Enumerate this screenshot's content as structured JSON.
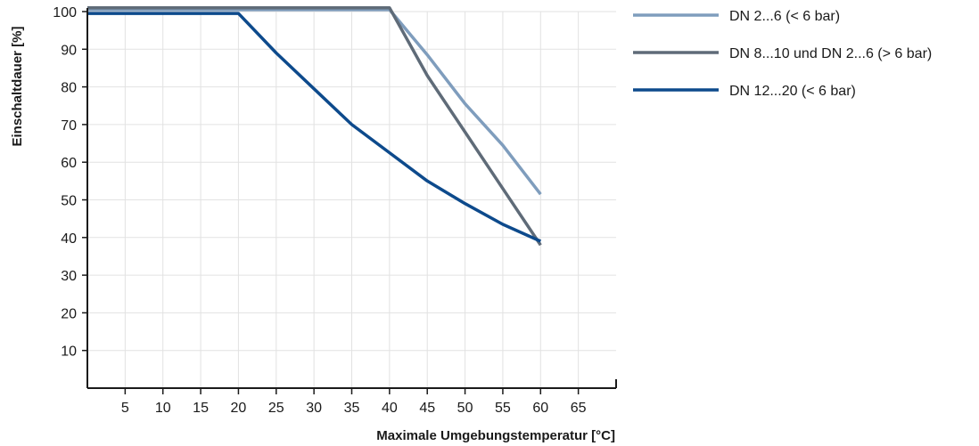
{
  "chart_data": {
    "type": "line",
    "xlabel": "Maximale Umgebungstemperatur [°C]",
    "ylabel": "Einschaltdauer [%]",
    "xlim": [
      0,
      70
    ],
    "ylim": [
      0,
      100
    ],
    "xticks": [
      5,
      10,
      15,
      20,
      25,
      30,
      35,
      40,
      45,
      50,
      55,
      60,
      65
    ],
    "yticks": [
      10,
      20,
      30,
      40,
      50,
      60,
      70,
      80,
      90,
      100
    ],
    "grid": true,
    "legend_position": "top-right-outside",
    "series": [
      {
        "name": "DN 2...6 (< 6 bar)",
        "color": "#7f9dbd",
        "x": [
          0,
          40,
          45,
          50,
          55,
          60
        ],
        "y": [
          100.5,
          100.5,
          88.5,
          75.5,
          64.5,
          51.5
        ]
      },
      {
        "name": "DN 8...10 und DN 2...6 (> 6 bar)",
        "color": "#5f6b78",
        "x": [
          0,
          40,
          45,
          50,
          55,
          60
        ],
        "y": [
          101,
          101,
          83,
          68,
          53,
          38
        ]
      },
      {
        "name": "DN 12...20 (< 6 bar)",
        "color": "#0d4a8c",
        "x": [
          0,
          20,
          25,
          30,
          35,
          40,
          45,
          50,
          55,
          60
        ],
        "y": [
          99.5,
          99.5,
          89,
          79.5,
          70,
          62.5,
          55,
          49,
          43.5,
          39
        ]
      }
    ]
  }
}
